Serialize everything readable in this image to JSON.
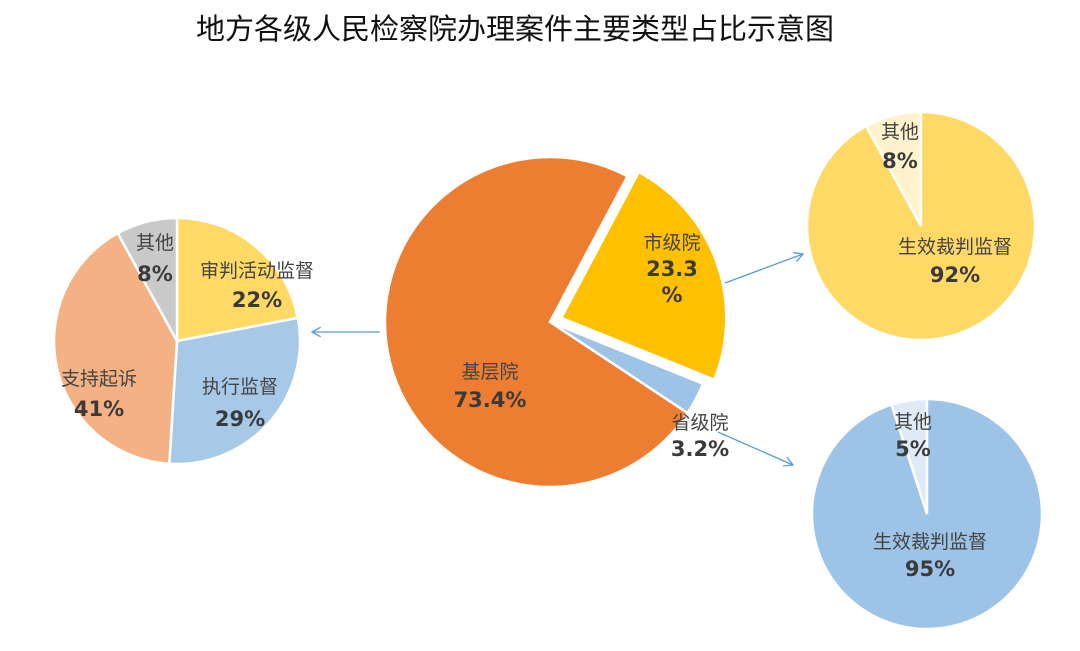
{
  "chart_data": [
    {
      "type": "pie",
      "title": "地方各级人民检察院办理案件主要类型占比示意图",
      "slices": [
        {
          "label": "市级院",
          "value": 23.3,
          "display": "23.3",
          "display2": "%",
          "color": "#FFC000",
          "exploded": true
        },
        {
          "label": "省级院",
          "value": 3.2,
          "display": "3.2%",
          "color": "#9DC3E6"
        },
        {
          "label": "基层院",
          "value": 73.4,
          "display": "73.4%",
          "color": "#ED7D31"
        }
      ]
    },
    {
      "type": "pie",
      "slices": [
        {
          "label": "审判活动监督",
          "value": 22,
          "display": "22%",
          "color": "#FFD966"
        },
        {
          "label": "执行监督",
          "value": 29,
          "display": "29%",
          "color": "#A7C9E8"
        },
        {
          "label": "支持起诉",
          "value": 41,
          "display": "41%",
          "color": "#F4B183"
        },
        {
          "label": "其他",
          "value": 8,
          "display": "8%",
          "color": "#C9C9C9"
        }
      ]
    },
    {
      "type": "pie",
      "slices": [
        {
          "label": "生效裁判监督",
          "value": 92,
          "display": "92%",
          "color": "#FFD966"
        },
        {
          "label": "其他",
          "value": 8,
          "display": "8%",
          "color": "#FFF2CC"
        }
      ]
    },
    {
      "type": "pie",
      "slices": [
        {
          "label": "生效裁判监督",
          "value": 95,
          "display": "95%",
          "color": "#9DC3E6"
        },
        {
          "label": "其他",
          "value": 5,
          "display": "5%",
          "color": "#DEEBF7"
        }
      ]
    }
  ],
  "arrow_color": "#5B9BD5"
}
